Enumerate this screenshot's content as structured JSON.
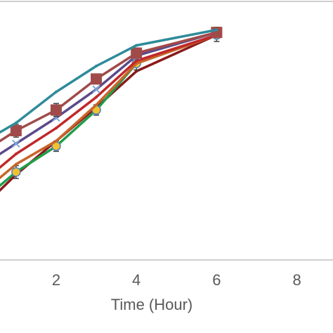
{
  "chart_data": {
    "type": "line",
    "xlabel": "Time (Hour)",
    "x_ticks": [
      2,
      4,
      6,
      8
    ],
    "xlim": [
      0.6,
      8.9
    ],
    "ylim": [
      0,
      100
    ],
    "grid": false,
    "series": [
      {
        "color": "#2E8B9A",
        "marker": "none",
        "x": [
          0,
          1,
          2,
          3,
          4,
          6
        ],
        "y": [
          44,
          53,
          65,
          75,
          83,
          89
        ],
        "err": [
          0,
          0,
          0,
          0,
          0,
          0
        ]
      },
      {
        "color": "#A14A4A",
        "marker": "square",
        "x": [
          0,
          1,
          2,
          3,
          4,
          6
        ],
        "y": [
          40,
          50,
          58,
          70,
          80,
          88
        ],
        "err": [
          0,
          2.5,
          2.5,
          0,
          2,
          2
        ]
      },
      {
        "color": "#5B4A8B",
        "marker": "x",
        "x": [
          0,
          1,
          2,
          3,
          4,
          6
        ],
        "y": [
          35,
          45,
          55,
          66,
          79,
          88
        ],
        "err": [
          0,
          0,
          0,
          0,
          0,
          0
        ]
      },
      {
        "color": "#C0282A",
        "marker": "none",
        "x": [
          0,
          1,
          2,
          3,
          4,
          6
        ],
        "y": [
          28,
          41,
          51,
          63,
          77,
          87
        ],
        "err": [
          0,
          0,
          0,
          0,
          0,
          0
        ]
      },
      {
        "color": "#C8652A",
        "marker": "none",
        "x": [
          0,
          1,
          2,
          3,
          4,
          6
        ],
        "y": [
          24,
          37,
          46,
          60,
          76,
          87
        ],
        "err": [
          0,
          0,
          0,
          0,
          0,
          0
        ]
      },
      {
        "color": "#1E9E4A",
        "marker": "circle",
        "x": [
          0,
          1,
          2,
          3,
          4,
          6
        ],
        "y": [
          21,
          34,
          44,
          58,
          76,
          87
        ],
        "err": [
          0,
          2.5,
          2,
          2,
          2.5,
          2.5
        ]
      },
      {
        "color": "#8B1A1A",
        "marker": "none",
        "x": [
          0,
          1,
          2,
          3,
          4,
          6
        ],
        "y": [
          18,
          33,
          46,
          59,
          73,
          87
        ],
        "err": [
          0,
          0,
          0,
          0,
          0,
          0
        ]
      }
    ]
  }
}
